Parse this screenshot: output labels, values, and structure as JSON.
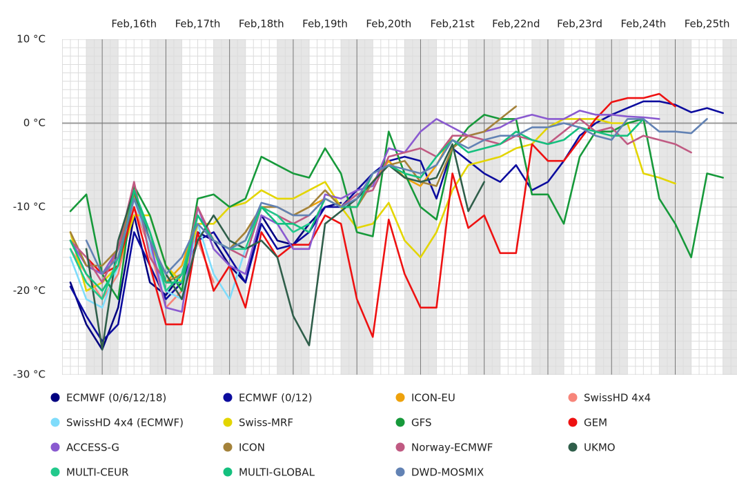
{
  "chart_data": {
    "type": "line",
    "x": [
      15.5,
      15.75,
      16,
      16.25,
      16.5,
      16.75,
      17,
      17.25,
      17.5,
      17.75,
      18,
      18.25,
      18.5,
      18.75,
      19,
      19.25,
      19.5,
      19.75,
      20,
      20.25,
      20.5,
      20.75,
      21,
      21.25,
      21.5,
      21.75,
      22,
      22.25,
      22.5,
      22.75,
      23,
      23.25,
      23.5,
      23.75,
      24,
      24.25,
      24.5,
      24.75,
      25,
      25.25,
      25.5,
      25.75
    ],
    "xlim": [
      15.37,
      25.97
    ],
    "xticks": [
      {
        "value": 16,
        "label": "Feb,16th"
      },
      {
        "value": 17,
        "label": "Feb,17th"
      },
      {
        "value": 18,
        "label": "Feb,18th"
      },
      {
        "value": 19,
        "label": "Feb,19th"
      },
      {
        "value": 20,
        "label": "Feb,20th"
      },
      {
        "value": 21,
        "label": "Feb,21st"
      },
      {
        "value": 22,
        "label": "Feb,22nd"
      },
      {
        "value": 23,
        "label": "Feb,23rd"
      },
      {
        "value": 24,
        "label": "Feb,24th"
      },
      {
        "value": 25,
        "label": "Feb,25th"
      }
    ],
    "ylim": [
      -30,
      10
    ],
    "yticks": [
      {
        "value": -30,
        "label": "-30 °C"
      },
      {
        "value": -20,
        "label": "-20 °C"
      },
      {
        "value": -10,
        "label": "-10 °C"
      },
      {
        "value": 0,
        "label": "0 °C"
      },
      {
        "value": 10,
        "label": "10 °C"
      }
    ],
    "grid": true,
    "series": [
      {
        "name": "ECMWF (0/6/12/18)",
        "color": "#000080",
        "values": [
          -19,
          -24,
          -27,
          -22,
          -11,
          -19,
          -20.5,
          -18,
          -13,
          -14,
          -17,
          -19,
          -11,
          -14,
          -14.5,
          -12,
          -10,
          -9.5,
          null,
          null,
          null,
          null,
          null,
          null,
          null,
          null,
          null,
          null,
          null,
          null,
          null,
          null,
          null,
          null,
          null,
          null,
          null,
          null,
          null,
          null,
          null,
          null
        ]
      },
      {
        "name": "ECMWF (0/12)",
        "color": "#0c0c9e",
        "values": [
          -19.5,
          -23,
          -26,
          -24,
          -13,
          -17,
          -21,
          -19,
          -14,
          -13,
          -16,
          -19,
          -12,
          -15,
          -14.5,
          -13,
          -10,
          -10,
          -8,
          -6,
          -4.5,
          -4,
          -4.5,
          -9,
          -3,
          -4.5,
          -6,
          -7,
          -5,
          -8,
          -7,
          -4.5,
          -1.5,
          0,
          1,
          1.8,
          2.6,
          2.6,
          2.2,
          1.3,
          1.8,
          1.2
        ]
      },
      {
        "name": "ICON-EU",
        "color": "#eea20c",
        "values": [
          -13,
          -17,
          -18,
          -16,
          -9,
          -14,
          -19,
          -17,
          -11,
          -14,
          -15,
          -13,
          -10,
          -10,
          -11,
          -10,
          -9,
          -10,
          -10,
          -7,
          -4.5,
          -6.5,
          -7.5,
          -5,
          -1.5,
          null,
          null,
          null,
          null,
          null,
          null,
          null,
          null,
          null,
          null,
          null,
          null,
          null,
          null,
          null,
          null,
          null
        ]
      },
      {
        "name": "SwissHD 4x4",
        "color": "#f7857a",
        "values": [
          -15,
          -18,
          -21,
          -18,
          -10,
          -15,
          -22,
          -20,
          -14,
          -19,
          null,
          null,
          null,
          null,
          null,
          null,
          null,
          null,
          null,
          null,
          null,
          null,
          null,
          null,
          null,
          null,
          null,
          null,
          null,
          null,
          null,
          null,
          null,
          null,
          null,
          null,
          null,
          null,
          null,
          null,
          null,
          null
        ]
      },
      {
        "name": "SwissHD 4x4 (ECMWF)",
        "color": "#7fdcfb",
        "values": [
          -16,
          -21,
          -22,
          -17,
          -9,
          -15,
          -20,
          -21,
          -12,
          -18,
          -21,
          -15,
          -14,
          null,
          null,
          null,
          null,
          null,
          null,
          null,
          null,
          null,
          null,
          null,
          null,
          null,
          null,
          null,
          null,
          null,
          null,
          null,
          null,
          null,
          null,
          null,
          null,
          null,
          null,
          null,
          null,
          null
        ]
      },
      {
        "name": "Swiss-MRF",
        "color": "#e3d500",
        "values": [
          -13,
          -20,
          -19,
          -17,
          -11,
          -11,
          -17,
          -19,
          -12,
          -12,
          -10,
          -9.5,
          -8,
          -9,
          -9,
          -8,
          -7,
          -10,
          -12.5,
          -12,
          -9.5,
          -14,
          -16,
          -13,
          -8,
          -5,
          -4.5,
          -4,
          -3,
          -2.5,
          -0.5,
          0.5,
          0.5,
          0.5,
          0,
          0,
          -6,
          -6.5,
          -7.2,
          null,
          null,
          null
        ]
      },
      {
        "name": "GFS",
        "color": "#16993a",
        "values": [
          -10.5,
          -8.5,
          -18,
          -21,
          -7.5,
          -11,
          -17,
          -20,
          -9,
          -8.5,
          -10,
          -9,
          -4,
          -5,
          -6,
          -6.5,
          -3,
          -6,
          -13,
          -13.5,
          -1,
          -6,
          -10,
          -11.5,
          -3,
          -0.5,
          1,
          0.5,
          0.5,
          -8.5,
          -8.5,
          -12,
          -4,
          -1,
          -1,
          0,
          0.5,
          -9,
          -12,
          -16,
          -6,
          -6.5
        ]
      },
      {
        "name": "GEM",
        "color": "#ee1111",
        "values": [
          null,
          -16,
          -18,
          -17,
          -10,
          -17,
          -24,
          -24,
          -13,
          -20,
          -17,
          -22,
          -13,
          -16,
          -14.5,
          -14.5,
          -11,
          -12,
          -21,
          -25.5,
          -11.5,
          -18,
          -22,
          -22,
          -6,
          -12.5,
          -11,
          -15.5,
          -15.5,
          -2.5,
          -4.5,
          -4.5,
          -2,
          0.5,
          2.5,
          3,
          3,
          3.5,
          2,
          null,
          null,
          null
        ]
      },
      {
        "name": "ACCESS-G",
        "color": "#8a5ad0",
        "values": [
          -14,
          -17,
          -18,
          -15,
          -9,
          -14,
          -22,
          -22.5,
          -10,
          -15,
          -17,
          -18,
          -11,
          -12,
          -15,
          -15,
          -8.5,
          -9,
          -8,
          -7.5,
          -3,
          -3.5,
          -1,
          0.5,
          -0.5,
          -1.5,
          -1,
          -0.5,
          0.5,
          1,
          0.5,
          0.5,
          1.5,
          1,
          1,
          0.8,
          0.7,
          0.5,
          null,
          null,
          null,
          null
        ]
      },
      {
        "name": "ICON",
        "color": "#a4823a",
        "values": [
          -13,
          -17,
          -17,
          -15,
          -8.5,
          -13,
          -19,
          -18,
          -11,
          -14,
          -15,
          -13,
          -10,
          -10,
          -11,
          -10,
          -8,
          -10,
          -10,
          -7,
          -5,
          -4.5,
          -7,
          -7.5,
          -3,
          -1.5,
          -1,
          0.5,
          2,
          null,
          null,
          null,
          null,
          null,
          null,
          null,
          null,
          null,
          null,
          null,
          null,
          null
        ]
      },
      {
        "name": "Norway-ECMWF",
        "color": "#c05a82",
        "values": [
          -14,
          -16,
          -19,
          -15,
          -7,
          -16,
          -19,
          -19,
          -10,
          -14,
          -15,
          -16,
          -10,
          -11,
          -12,
          -11,
          -9,
          -10,
          -8.5,
          -8,
          -4,
          -3.5,
          -3,
          -4,
          -1.5,
          -1.5,
          -2,
          -2.5,
          -1.5,
          -2,
          -2.5,
          -1,
          0.5,
          -1,
          -0.5,
          -2.5,
          -1.5,
          -2,
          -2.5,
          -3.5,
          null,
          null
        ]
      },
      {
        "name": "UKMO",
        "color": "#2f5e4a",
        "values": [
          null,
          -15,
          -27,
          -14,
          -8,
          -14,
          -18,
          -21,
          -14,
          -11,
          -14,
          -15,
          -14,
          -16,
          -23,
          -26.5,
          -12,
          -10.5,
          -9,
          -7,
          -5,
          -6.5,
          -7,
          -6.5,
          -2.5,
          -10.5,
          -7,
          null,
          null,
          null,
          null,
          null,
          null,
          null,
          null,
          null,
          null,
          null,
          null,
          null,
          null,
          null
        ]
      },
      {
        "name": "MULTI-CEUR",
        "color": "#22c98c",
        "values": [
          -15,
          -19,
          -21,
          -16,
          -9,
          -13,
          -20,
          -18,
          -11,
          -14,
          -15,
          -15,
          -10,
          -11,
          -13,
          -12,
          null,
          null,
          null,
          null,
          null,
          null,
          null,
          null,
          null,
          null,
          null,
          null,
          null,
          null,
          null,
          null,
          null,
          null,
          null,
          null,
          null,
          null,
          null,
          null,
          null,
          null
        ]
      },
      {
        "name": "MULTI-GLOBAL",
        "color": "#14c07e",
        "values": [
          -14,
          -18,
          -20,
          -17,
          -8,
          -13,
          -19,
          -19,
          -11,
          -14,
          -15,
          -14,
          -10,
          -12,
          -12,
          -13,
          -9,
          -10,
          -10,
          -6,
          -5,
          -6,
          -6.5,
          -4,
          -2,
          -3.5,
          -3,
          -2.5,
          -1,
          -2,
          -2.5,
          -2,
          -0.5,
          -1,
          -1.5,
          -1.5,
          0.5,
          null,
          null,
          null,
          null,
          null
        ]
      },
      {
        "name": "DWD-MOSMIX",
        "color": "#6282b4",
        "values": [
          null,
          -14,
          -18,
          -16,
          -9,
          -14,
          -18,
          -16,
          -12,
          -14,
          -15,
          -14,
          -9.5,
          -10,
          -11,
          -11,
          -9,
          -10,
          -9,
          -6,
          -5,
          -5.5,
          -6,
          -5,
          -2,
          -3,
          -2,
          -1.5,
          -1.5,
          -0.5,
          -0.5,
          0,
          -0.5,
          -1.5,
          -2,
          0.5,
          0.5,
          -1,
          -1,
          -1.2,
          0.5,
          null
        ]
      }
    ]
  }
}
